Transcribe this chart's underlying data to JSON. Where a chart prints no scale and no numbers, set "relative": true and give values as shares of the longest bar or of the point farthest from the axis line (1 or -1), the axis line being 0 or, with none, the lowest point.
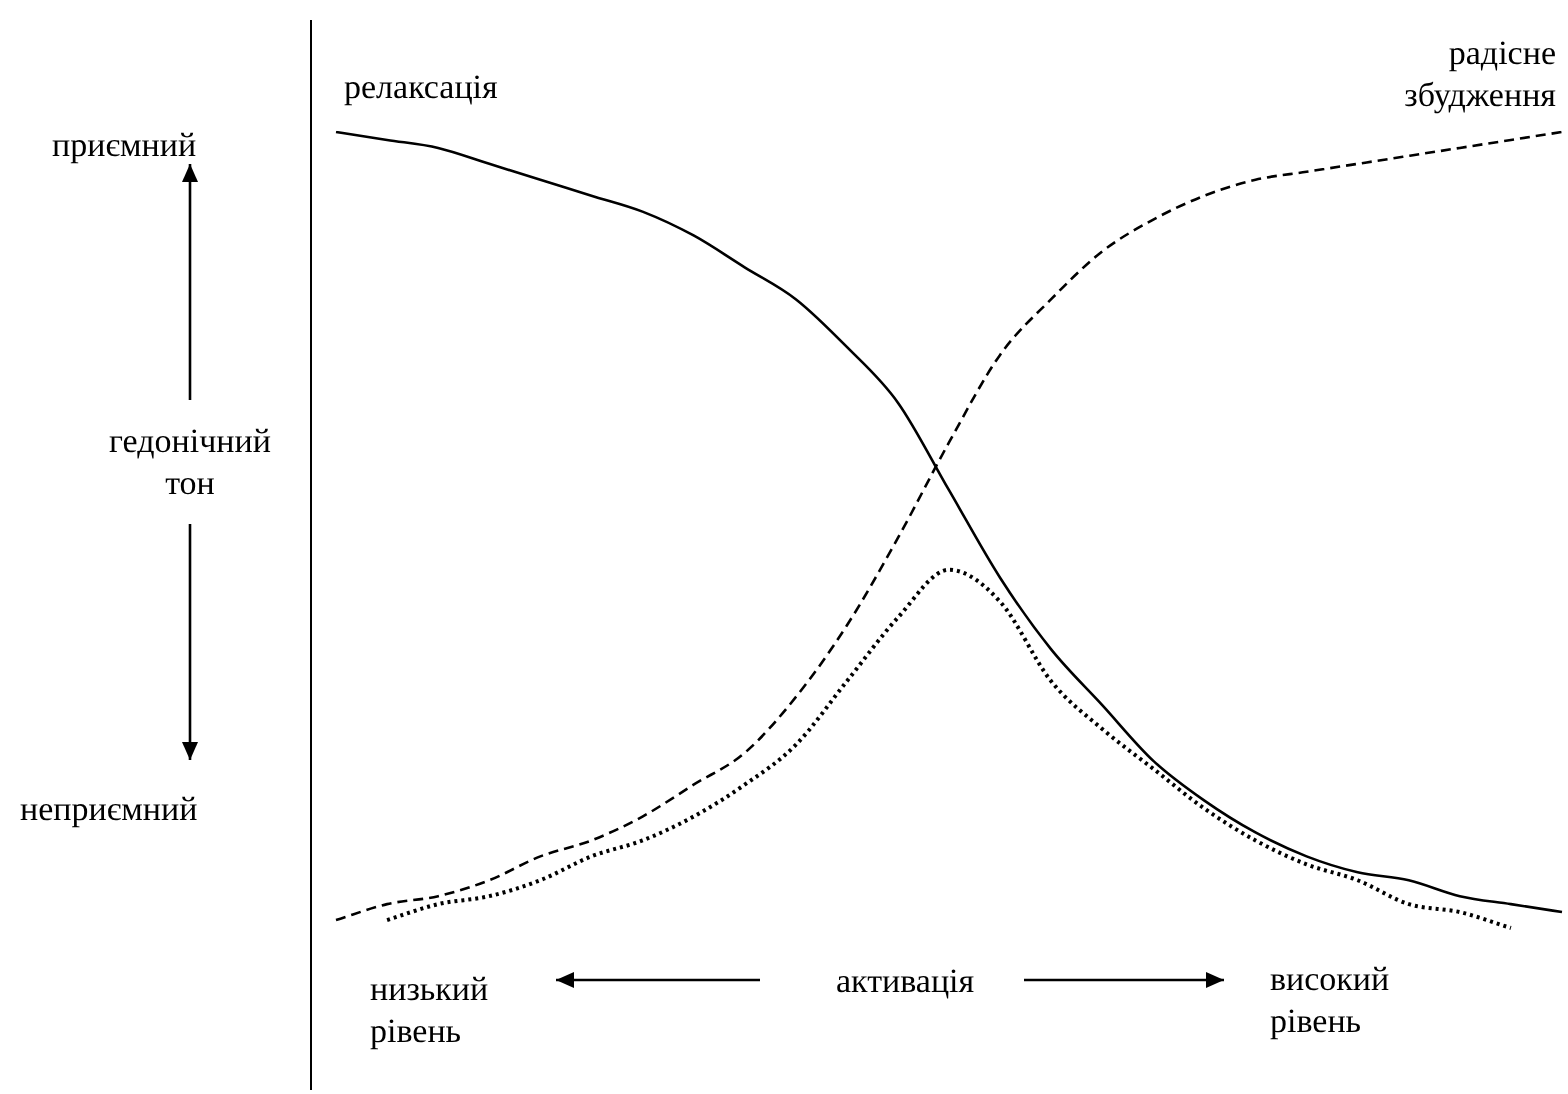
{
  "chart_data": {
    "type": "line",
    "relative": true,
    "marker": "none",
    "legend": false,
    "xlabel": "активація",
    "ylabel": "гедонічний тон",
    "annotations": [
      "приємний",
      "неприємний",
      "низький рівень",
      "високий рівень"
    ],
    "categories": [
      null,
      null,
      null,
      null,
      null,
      null,
      null,
      null,
      null,
      null,
      null,
      null,
      null,
      null,
      null,
      null,
      null,
      null,
      null,
      null,
      null,
      null,
      null,
      null,
      null
    ],
    "series": [
      {
        "name": "релаксація",
        "color": "#000000",
        "line_style": "solid",
        "values": [
          1.0,
          0.99,
          0.98,
          0.96,
          0.94,
          0.92,
          0.9,
          0.87,
          0.83,
          0.79,
          0.73,
          0.66,
          0.55,
          0.44,
          0.35,
          0.28,
          0.21,
          0.16,
          0.12,
          0.09,
          0.07,
          0.06,
          0.04,
          0.03,
          0.02
        ]
      },
      {
        "name": "радісне збудження",
        "color": "#000000",
        "line_style": "dashed",
        "values": [
          0.01,
          0.03,
          0.04,
          0.06,
          0.09,
          0.11,
          0.14,
          0.18,
          0.22,
          0.29,
          0.38,
          0.49,
          0.61,
          0.72,
          0.79,
          0.85,
          0.89,
          0.92,
          0.94,
          0.95,
          0.96,
          0.97,
          0.98,
          0.99,
          1.0
        ]
      },
      {
        "color": "#000000",
        "line_style": "dotted",
        "values": [
          null,
          0.01,
          0.03,
          0.04,
          0.06,
          0.09,
          0.11,
          0.14,
          0.18,
          0.23,
          0.31,
          0.39,
          0.45,
          0.41,
          0.31,
          0.25,
          0.2,
          0.15,
          0.11,
          0.08,
          0.06,
          0.03,
          0.02,
          0,
          null
        ]
      }
    ]
  }
}
